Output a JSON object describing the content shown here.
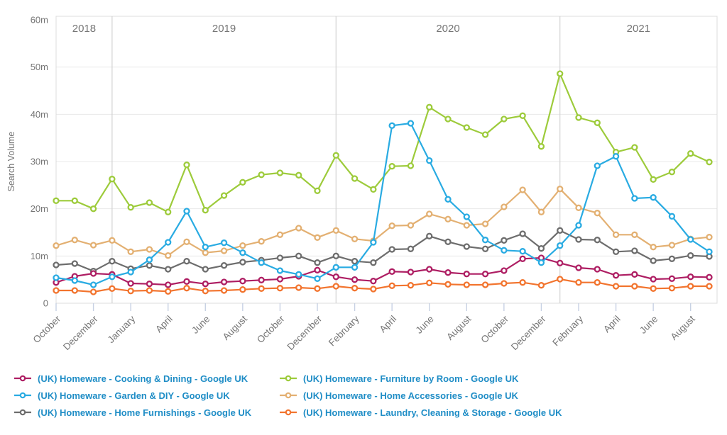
{
  "chart_data": {
    "type": "line",
    "title": "",
    "xlabel": "",
    "ylabel": "Search Volume",
    "units": "searches (m = millions)",
    "ylim_millions": [
      0,
      60
    ],
    "grid": true,
    "legend_position": "bottom",
    "y_tick_labels": [
      "0",
      "10m",
      "20m",
      "30m",
      "40m",
      "50m",
      "60m"
    ],
    "x_tick_labels": [
      "October",
      "December",
      "January",
      "April",
      "June",
      "August",
      "October",
      "December",
      "February",
      "April",
      "June",
      "August",
      "October",
      "December",
      "February",
      "April",
      "June",
      "August"
    ],
    "year_labels": [
      "2018",
      "2019",
      "2020",
      "2021"
    ],
    "year_separator_month_index": [
      3,
      15,
      27
    ],
    "months": [
      "Oct 2018",
      "Nov 2018",
      "Dec 2018",
      "Jan 2019",
      "Feb 2019",
      "Mar 2019",
      "Apr 2019",
      "May 2019",
      "Jun 2019",
      "Jul 2019",
      "Aug 2019",
      "Sep 2019",
      "Oct 2019",
      "Nov 2019",
      "Dec 2019",
      "Jan 2020",
      "Feb 2020",
      "Mar 2020",
      "Apr 2020",
      "May 2020",
      "Jun 2020",
      "Jul 2020",
      "Aug 2020",
      "Sep 2020",
      "Oct 2020",
      "Nov 2020",
      "Dec 2020",
      "Jan 2021",
      "Feb 2021",
      "Mar 2021",
      "Apr 2021",
      "May 2021",
      "Jun 2021",
      "Jul 2021",
      "Aug 2021",
      "Sep 2021"
    ],
    "series": [
      {
        "id": "cooking-dining",
        "name": "(UK) Homeware - Cooking & Dining - Google UK",
        "color": "#ae1e63",
        "values_millions": [
          4.4,
          5.7,
          6.3,
          6.1,
          4.2,
          4.1,
          3.9,
          4.6,
          4.1,
          4.5,
          4.7,
          4.9,
          5.1,
          5.7,
          7.0,
          5.6,
          5.0,
          4.7,
          6.7,
          6.6,
          7.2,
          6.5,
          6.2,
          6.2,
          6.9,
          9.4,
          9.6,
          8.5,
          7.5,
          7.2,
          5.9,
          6.1,
          5.1,
          5.2,
          5.6,
          5.5
        ]
      },
      {
        "id": "garden-diy",
        "name": "(UK) Homeware - Garden & DIY - Google UK",
        "color": "#29abe2",
        "values_millions": [
          5.4,
          4.8,
          3.9,
          5.6,
          6.6,
          9.2,
          12.9,
          19.5,
          11.9,
          12.8,
          10.7,
          8.6,
          6.9,
          6.1,
          5.2,
          7.6,
          7.6,
          12.9,
          37.6,
          38.1,
          30.2,
          22.0,
          18.3,
          13.4,
          11.2,
          11.0,
          8.6,
          12.2,
          16.5,
          29.1,
          31.1,
          22.2,
          22.4,
          18.4,
          13.5,
          10.9
        ]
      },
      {
        "id": "home-furnishings",
        "name": "(UK) Homeware - Home Furnishings - Google UK",
        "color": "#6d6d6d",
        "values_millions": [
          8.1,
          8.4,
          6.8,
          8.9,
          7.3,
          8.0,
          7.2,
          8.9,
          7.2,
          8.0,
          8.7,
          9.1,
          9.6,
          10.0,
          8.6,
          10.0,
          8.9,
          8.6,
          11.4,
          11.5,
          14.2,
          13.0,
          12.0,
          11.5,
          13.3,
          14.7,
          11.6,
          15.4,
          13.5,
          13.4,
          10.9,
          11.1,
          9.0,
          9.4,
          10.1,
          9.9
        ]
      },
      {
        "id": "furniture-by-room",
        "name": "(UK) Homeware - Furniture by Room - Google UK",
        "color": "#9dcb3b",
        "values_millions": [
          21.7,
          21.7,
          20.0,
          26.3,
          20.3,
          21.3,
          19.3,
          29.3,
          19.7,
          22.8,
          25.6,
          27.2,
          27.6,
          27.1,
          23.8,
          31.3,
          26.4,
          24.1,
          29.0,
          29.1,
          41.5,
          39.0,
          37.2,
          35.7,
          39.0,
          39.7,
          33.2,
          48.6,
          39.3,
          38.2,
          32.0,
          33.0,
          26.2,
          27.8,
          31.7,
          29.9
        ]
      },
      {
        "id": "home-accessories",
        "name": "(UK) Homeware - Home Accessories - Google UK",
        "color": "#e3b072",
        "values_millions": [
          12.2,
          13.4,
          12.3,
          13.3,
          10.9,
          11.4,
          10.1,
          13.0,
          10.7,
          11.1,
          12.2,
          13.1,
          14.5,
          15.9,
          13.9,
          15.4,
          13.6,
          13.2,
          16.4,
          16.5,
          18.9,
          17.8,
          16.5,
          16.8,
          20.4,
          24.0,
          19.3,
          24.2,
          20.2,
          19.1,
          14.5,
          14.5,
          11.9,
          12.3,
          13.6,
          14.0
        ]
      },
      {
        "id": "laundry-cleaning-storage",
        "name": "(UK) Homeware - Laundry, Cleaning & Storage - Google UK",
        "color": "#f2742e",
        "values_millions": [
          2.7,
          2.7,
          2.4,
          3.1,
          2.6,
          2.7,
          2.5,
          3.2,
          2.6,
          2.7,
          2.9,
          3.1,
          3.2,
          3.3,
          3.1,
          3.6,
          3.2,
          3.0,
          3.7,
          3.8,
          4.3,
          4.0,
          3.9,
          3.9,
          4.2,
          4.4,
          3.8,
          5.1,
          4.4,
          4.4,
          3.6,
          3.6,
          3.1,
          3.2,
          3.6,
          3.6
        ]
      }
    ],
    "draw_order": [
      "furniture-by-room",
      "home-accessories",
      "home-furnishings",
      "cooking-dining",
      "garden-diy",
      "laundry-cleaning-storage"
    ],
    "legend_columns": [
      [
        "cooking-dining",
        "garden-diy",
        "home-furnishings"
      ],
      [
        "furniture-by-room",
        "home-accessories",
        "laundry-cleaning-storage"
      ]
    ]
  },
  "style": {
    "legend_text_color": "#1f8dc6",
    "axis_text_color": "#757575",
    "grid_color": "#e8e8e8",
    "plot_border_color": "#dcdcdc",
    "year_separator_color": "#d2d2d2",
    "x_tick_mark_color": "#c7d1e3",
    "background_color": "#ffffff"
  }
}
